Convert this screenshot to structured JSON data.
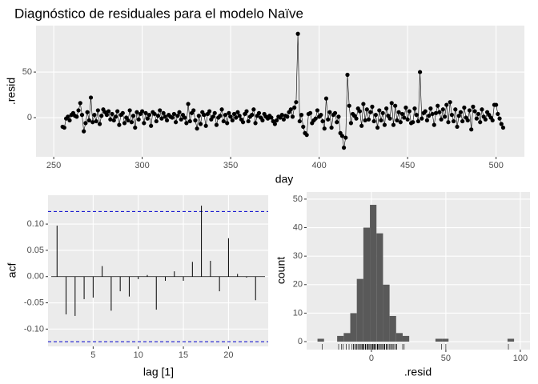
{
  "chart_data": [
    {
      "type": "line",
      "title": "Diagnóstico de residuales para el modelo Naïve",
      "x_label": "day",
      "y_label": ".resid",
      "x": [
        255,
        256,
        257,
        258,
        259,
        260,
        261,
        262,
        263,
        264,
        265,
        266,
        267,
        268,
        269,
        270,
        271,
        272,
        273,
        274,
        275,
        276,
        277,
        278,
        279,
        280,
        281,
        282,
        283,
        284,
        285,
        286,
        287,
        288,
        289,
        290,
        291,
        292,
        293,
        294,
        295,
        296,
        297,
        298,
        299,
        300,
        301,
        302,
        303,
        304,
        305,
        306,
        307,
        308,
        309,
        310,
        311,
        312,
        313,
        314,
        315,
        316,
        317,
        318,
        319,
        320,
        321,
        322,
        323,
        324,
        325,
        326,
        327,
        328,
        329,
        330,
        331,
        332,
        333,
        334,
        335,
        336,
        337,
        338,
        339,
        340,
        341,
        342,
        343,
        344,
        345,
        346,
        347,
        348,
        349,
        350,
        351,
        352,
        353,
        354,
        355,
        356,
        357,
        358,
        359,
        360,
        361,
        362,
        363,
        364,
        365,
        366,
        367,
        368,
        369,
        370,
        371,
        372,
        373,
        374,
        375,
        376,
        377,
        378,
        379,
        380,
        381,
        382,
        383,
        384,
        385,
        386,
        387,
        388,
        389,
        390,
        391,
        392,
        393,
        394,
        395,
        396,
        397,
        398,
        399,
        400,
        401,
        402,
        403,
        404,
        405,
        406,
        407,
        408,
        409,
        410,
        411,
        412,
        413,
        414,
        415,
        416,
        417,
        418,
        419,
        420,
        421,
        422,
        423,
        424,
        425,
        426,
        427,
        428,
        429,
        430,
        431,
        432,
        433,
        434,
        435,
        436,
        437,
        438,
        439,
        440,
        441,
        442,
        443,
        444,
        445,
        446,
        447,
        448,
        449,
        450,
        451,
        452,
        453,
        454,
        455,
        456,
        457,
        458,
        459,
        460,
        461,
        462,
        463,
        464,
        465,
        466,
        467,
        468,
        469,
        470,
        471,
        472,
        473,
        474,
        475,
        476,
        477,
        478,
        479,
        480,
        481,
        482,
        483,
        484,
        485,
        486,
        487,
        488,
        489,
        490,
        491,
        492,
        493,
        494,
        495,
        496,
        497,
        498,
        499,
        500,
        501,
        502,
        503,
        504
      ],
      "series": [
        {
          "name": ".resid",
          "color": "#000000",
          "values": [
            -10,
            -11,
            -1,
            1,
            -3,
            3,
            5,
            2,
            1,
            8,
            16,
            3,
            -15,
            -6,
            6,
            -3,
            22,
            -5,
            3,
            -4,
            8,
            -7,
            2,
            9,
            6,
            3,
            7,
            -2,
            4,
            -3,
            1,
            7,
            -8,
            3,
            5,
            -6,
            0,
            -3,
            8,
            -5,
            2,
            -11,
            6,
            -2,
            4,
            7,
            -6,
            5,
            -1,
            3,
            -9,
            6,
            4,
            -4,
            2,
            8,
            -1,
            5,
            1,
            -3,
            3,
            1,
            0,
            4,
            -5,
            2,
            6,
            -2,
            3,
            0,
            -6,
            15,
            -4,
            5,
            8,
            -3,
            -12,
            2,
            -7,
            6,
            3,
            -9,
            4,
            7,
            -2,
            1,
            5,
            -8,
            0,
            2,
            9,
            -4,
            3,
            -6,
            5,
            1,
            -3,
            4,
            0,
            6,
            2,
            -2,
            -5,
            4,
            7,
            -4,
            1,
            3,
            9,
            -6,
            2,
            5,
            0,
            -3,
            4,
            1,
            -1,
            2,
            0,
            -4,
            -7,
            -3,
            1,
            0,
            3,
            -2,
            2,
            1,
            6,
            9,
            1,
            11,
            17,
            92,
            -4,
            3,
            -10,
            -17,
            -19,
            4,
            5,
            -6,
            -3,
            -1,
            8,
            1,
            3,
            -4,
            -12,
            21,
            -2,
            6,
            -11,
            3,
            5,
            -5,
            1,
            -17,
            -20,
            -33,
            -22,
            47,
            13,
            -6,
            4,
            2,
            -1,
            10,
            7,
            -9,
            15,
            -3,
            9,
            -2,
            6,
            12,
            -4,
            3,
            -11,
            8,
            -3,
            5,
            -8,
            10,
            2,
            -1,
            16,
            -8,
            13,
            -3,
            6,
            -5,
            4,
            0,
            11,
            -2,
            7,
            -6,
            -5,
            10,
            3,
            -4,
            50,
            -1,
            5,
            7,
            -3,
            2,
            10,
            4,
            -8,
            5,
            13,
            6,
            -2,
            9,
            1,
            14,
            -5,
            17,
            3,
            -4,
            9,
            -10,
            2,
            6,
            -4,
            11,
            0,
            -3,
            8,
            -13,
            12,
            7,
            -1,
            4,
            -5,
            9,
            1,
            -2,
            6,
            3,
            0,
            -3,
            14,
            14,
            4,
            -1,
            -7,
            -11
          ]
        }
      ],
      "xlim": [
        240,
        516
      ],
      "ylim": [
        -43,
        101
      ],
      "xticks": [
        250,
        300,
        350,
        400,
        450,
        500
      ],
      "yticks": [
        0,
        50
      ],
      "grid": true
    },
    {
      "type": "bar",
      "x_label": "lag [1]",
      "y_label": "acf",
      "color": "#000000",
      "x": [
        1,
        2,
        3,
        4,
        5,
        6,
        7,
        8,
        9,
        10,
        11,
        12,
        13,
        14,
        15,
        16,
        17,
        18,
        19,
        20,
        21,
        22,
        23
      ],
      "values": [
        0.097,
        -0.072,
        -0.075,
        -0.043,
        -0.04,
        0.02,
        -0.065,
        -0.028,
        -0.038,
        -0.005,
        0.003,
        -0.063,
        -0.008,
        0.01,
        -0.008,
        0.028,
        0.135,
        0.03,
        -0.028,
        0.073,
        0.005,
        -0.002,
        -0.045
      ],
      "conf_limits": [
        -0.124,
        0.124
      ],
      "conf_color": "#0000cc",
      "xlim": [
        0,
        24.4
      ],
      "ylim": [
        -0.133,
        0.155
      ],
      "xticks": [
        5,
        10,
        15,
        20
      ],
      "yticks": [
        {
          "value": -0.1,
          "label": "-0.10"
        },
        {
          "value": -0.05,
          "label": "-0.05"
        },
        {
          "value": 0,
          "label": "0.00"
        },
        {
          "value": 0.05,
          "label": "0.05"
        },
        {
          "value": 0.1,
          "label": "0.10"
        }
      ],
      "grid": true
    },
    {
      "type": "histogram",
      "x_label": ".resid",
      "y_label": "count",
      "color": "#595959",
      "rug_source": "chart_data.0.series.0.values",
      "bins": [
        -36.2,
        -31.8,
        -27.4,
        -23,
        -18.6,
        -14.2,
        -9.8,
        -5.4,
        -1,
        3.4,
        7.8,
        12.2,
        16.6,
        21,
        25.4,
        29.8,
        34.2,
        38.6,
        43,
        47.4,
        51.8,
        56.2,
        60.6,
        65,
        69.4,
        73.8,
        78.2,
        82.6,
        87,
        91.4,
        95.8
      ],
      "values": [
        1,
        0,
        0,
        2,
        3,
        10,
        22,
        40,
        48,
        38,
        20,
        9,
        3,
        2,
        0,
        0,
        0,
        0,
        1,
        1,
        0,
        0,
        0,
        0,
        0,
        0,
        0,
        0,
        0,
        1
      ],
      "xlim": [
        -43.5,
        106.5
      ],
      "ylim": [
        -2.8,
        52.5
      ],
      "xticks": [
        0,
        50,
        100
      ],
      "yticks": [
        0,
        10,
        20,
        30,
        40,
        50
      ],
      "grid": true
    }
  ]
}
